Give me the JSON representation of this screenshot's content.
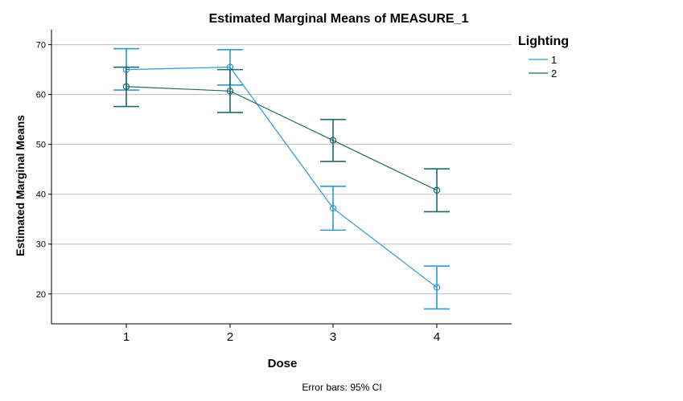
{
  "chart_data": {
    "type": "line",
    "title": "Estimated Marginal Means of MEASURE_1",
    "xlabel": "Dose",
    "ylabel": "Estimated Marginal Means",
    "categories": [
      "1",
      "2",
      "3",
      "4"
    ],
    "ylim": [
      14,
      73
    ],
    "yticks": [
      20,
      30,
      40,
      50,
      60,
      70
    ],
    "grid": true,
    "legend": {
      "title": "Lighting",
      "placement": "right"
    },
    "footnote": "Error bars: 95% CI",
    "series": [
      {
        "name": "1",
        "color": "#2b9ad8",
        "values": [
          65.0,
          65.5,
          37.2,
          21.3
        ],
        "ci_lower": [
          60.9,
          61.9,
          32.8,
          17.0
        ],
        "ci_upper": [
          69.2,
          69.0,
          41.6,
          25.6
        ]
      },
      {
        "name": "2",
        "color": "#1b6b6b",
        "values": [
          61.6,
          60.7,
          50.8,
          40.8
        ],
        "ci_lower": [
          57.6,
          56.4,
          46.6,
          36.5
        ],
        "ci_upper": [
          65.5,
          65.0,
          55.0,
          45.1
        ]
      }
    ]
  }
}
